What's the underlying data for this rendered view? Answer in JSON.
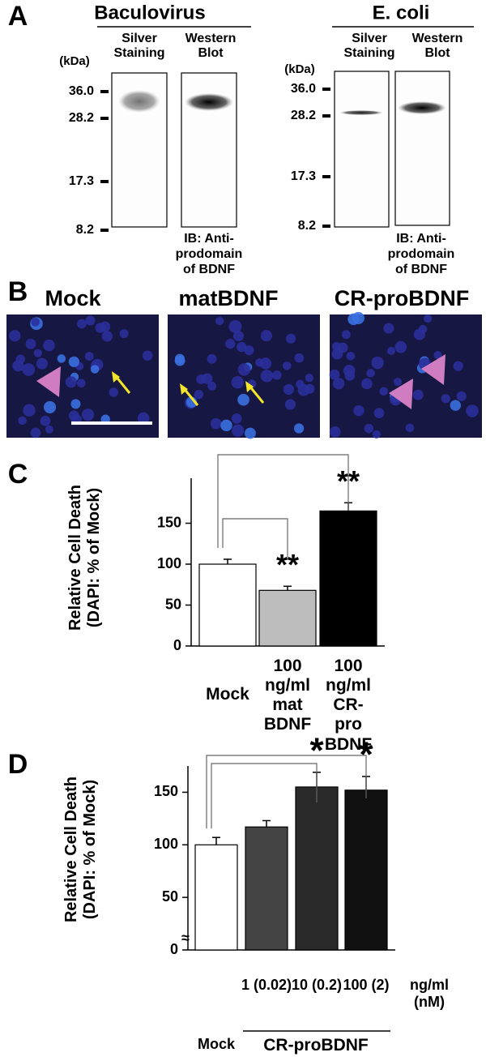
{
  "panel_labels": [
    "A",
    "B",
    "C",
    "D"
  ],
  "panel_a": {
    "blots": [
      {
        "title": "Baculovirus",
        "lanes": [
          [
            "Silver",
            "Staining"
          ],
          [
            "Western",
            "Blot"
          ]
        ],
        "unit": "(kDa)",
        "markers": [
          "36.0",
          "28.2",
          "17.3",
          "8.2"
        ],
        "note": [
          "IB: Anti-",
          "prodomain",
          "of BDNF"
        ]
      },
      {
        "title": "E. coli",
        "lanes": [
          [
            "Silver",
            "Staining"
          ],
          [
            "Western",
            "Blot"
          ]
        ],
        "unit": "(kDa)",
        "markers": [
          "36.0",
          "28.2",
          "17.3",
          "8.2"
        ],
        "note": [
          "IB: Anti-",
          "prodomain",
          "of BDNF"
        ]
      }
    ]
  },
  "panel_b": {
    "titles": [
      "Mock",
      "matBDNF",
      "CR-proBDNF"
    ]
  },
  "chart_data": [
    {
      "type": "bar",
      "y_label": "Relative Cell Death (DAPI: % of Mock)",
      "categories": [
        "Mock",
        "100 ng/ml mat BDNF",
        "100 ng/ml CR-pro BDNF"
      ],
      "values": [
        100,
        68,
        165
      ],
      "errors": [
        6,
        5,
        10
      ],
      "colors": [
        "#ffffff",
        "#bdbdbd",
        "#000000"
      ],
      "significance": [
        null,
        "**",
        "**"
      ],
      "ylim": [
        0,
        205
      ],
      "yticks": [
        0,
        50,
        100,
        150
      ]
    },
    {
      "type": "bar",
      "y_label": "Relative Cell Death (DAPI: % of Mock)",
      "categories": [
        "Mock",
        "1 (0.02)",
        "10 (0.2)",
        "100 (2)"
      ],
      "unit_label": "ng/ml (nM)",
      "group_label": "CR-proBDNF",
      "values": [
        100,
        117,
        155,
        152
      ],
      "errors": [
        7,
        6,
        14,
        13
      ],
      "colors": [
        "#ffffff",
        "#444444",
        "#2a2a2a",
        "#111111"
      ],
      "significance": [
        null,
        null,
        "*",
        "*"
      ],
      "ylim": [
        0,
        175
      ],
      "yticks": [
        0,
        50,
        100,
        150
      ]
    }
  ]
}
